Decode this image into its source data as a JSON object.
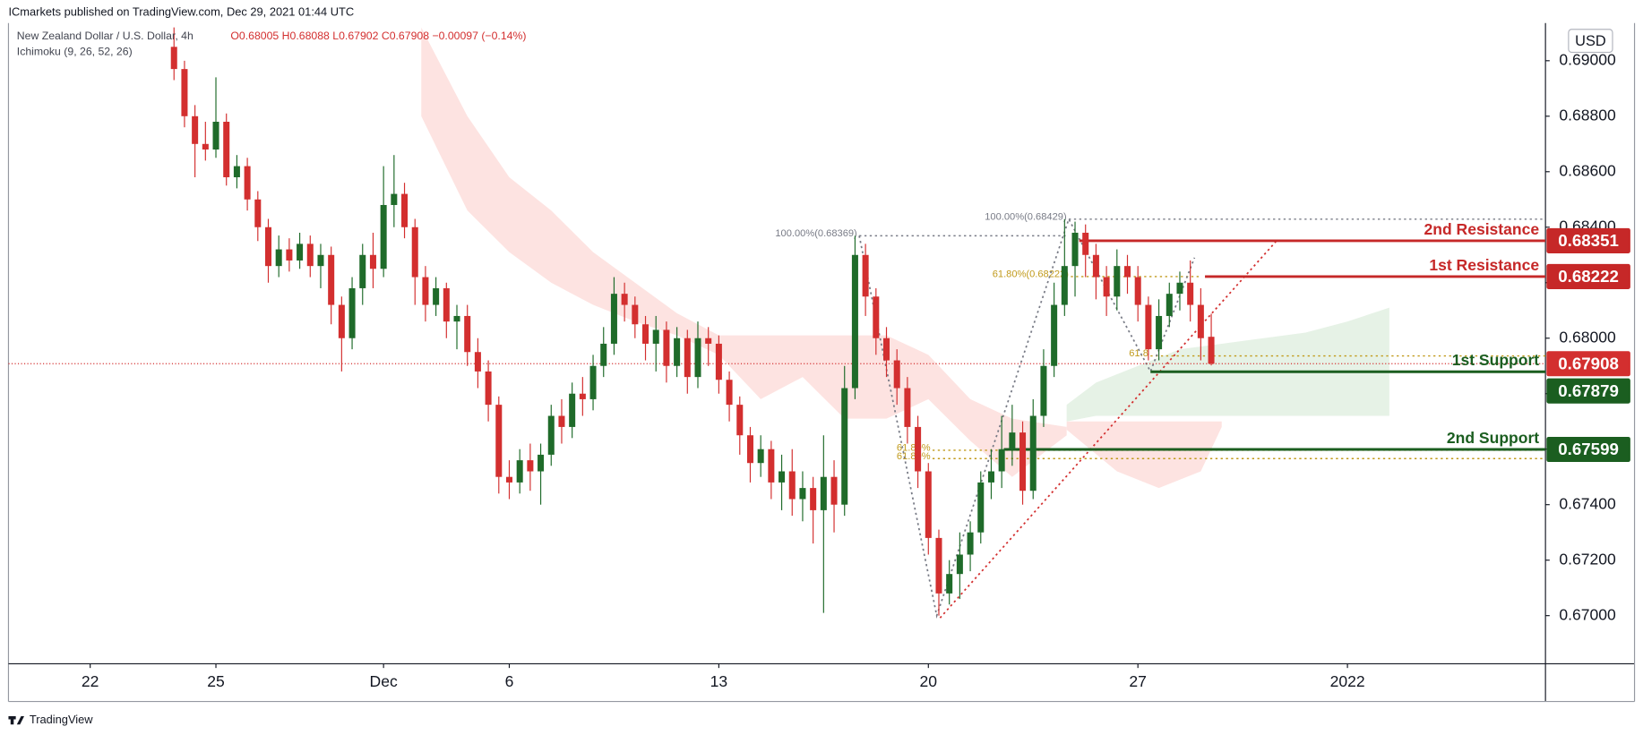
{
  "chart_data": {
    "type": "candlestick",
    "publisher": "ICmarkets published on TradingView.com, Dec 29, 2021 01:44 UTC",
    "title": "New Zealand Dollar / U.S. Dollar, 4h",
    "ohlc_text": "O0.68005 H0.68088 L0.67902 C0.67908 −0.00097 (−0.14%)",
    "indicator": "Ichimoku (9, 26, 52, 26)",
    "currency": "USD",
    "footer": "TradingView",
    "up_color": "#1f6b2a",
    "down_color": "#d32f2f",
    "xlim": [
      -1.95,
      34.725
    ],
    "xticks": [
      {
        "value": 0,
        "label": "22"
      },
      {
        "value": 3,
        "label": "25"
      },
      {
        "value": 7,
        "label": "Dec"
      },
      {
        "value": 10,
        "label": "6"
      },
      {
        "value": 15,
        "label": "13"
      },
      {
        "value": 20,
        "label": "20"
      },
      {
        "value": 25,
        "label": "27"
      },
      {
        "value": 30,
        "label": "2022"
      }
    ],
    "ylim": [
      0.668264,
      0.691358
    ],
    "yticks": [
      {
        "value": 0.67,
        "label": "0.67000"
      },
      {
        "value": 0.672,
        "label": "0.67200"
      },
      {
        "value": 0.674,
        "label": "0.67400"
      },
      {
        "value": 0.676,
        "label": "0.67600"
      },
      {
        "value": 0.678,
        "label": "0.67800"
      },
      {
        "value": 0.68,
        "label": "0.68000"
      },
      {
        "value": 0.682,
        "label": "0.68200"
      },
      {
        "value": 0.684,
        "label": "0.68400"
      },
      {
        "value": 0.686,
        "label": "0.68600"
      },
      {
        "value": 0.688,
        "label": "0.68800"
      },
      {
        "value": 0.69,
        "label": "0.69000"
      }
    ],
    "x": [
      2,
      2.25,
      2.5,
      2.75,
      3,
      3.25,
      3.5,
      3.75,
      4,
      4.25,
      4.5,
      4.75,
      5,
      5.25,
      5.5,
      5.75,
      6,
      6.25,
      6.5,
      6.75,
      7,
      7.25,
      7.5,
      7.75,
      8,
      8.25,
      8.5,
      8.75,
      9,
      9.25,
      9.5,
      9.75,
      10,
      10.25,
      10.5,
      10.75,
      11,
      11.25,
      11.5,
      11.75,
      12,
      12.25,
      12.5,
      12.75,
      13,
      13.25,
      13.5,
      13.75,
      14,
      14.25,
      14.5,
      14.75,
      15,
      15.25,
      15.5,
      15.75,
      16,
      16.25,
      16.5,
      16.75,
      17,
      17.25,
      17.5,
      17.75,
      18,
      18.25,
      18.5,
      18.75,
      19,
      19.25,
      19.5,
      19.75,
      20,
      20.25,
      20.5,
      20.75,
      21,
      21.25,
      21.5,
      21.75,
      22,
      22.25,
      22.5,
      22.75,
      23,
      23.25,
      23.5,
      23.75,
      24,
      24.25,
      24.5,
      24.75,
      25,
      25.25,
      25.5,
      25.75,
      26,
      26.25,
      26.5,
      26.75
    ],
    "open": [
      0.6905,
      0.6897,
      0.688,
      0.687,
      0.6868,
      0.6878,
      0.6858,
      0.6862,
      0.685,
      0.684,
      0.6826,
      0.6832,
      0.6828,
      0.6834,
      0.6826,
      0.683,
      0.6812,
      0.68,
      0.6818,
      0.683,
      0.6825,
      0.6848,
      0.6852,
      0.684,
      0.6822,
      0.6812,
      0.6818,
      0.6806,
      0.6808,
      0.6795,
      0.6788,
      0.6776,
      0.675,
      0.6748,
      0.6756,
      0.6752,
      0.6758,
      0.6772,
      0.6768,
      0.678,
      0.6778,
      0.679,
      0.6798,
      0.6816,
      0.6812,
      0.6805,
      0.6798,
      0.6803,
      0.679,
      0.68,
      0.6786,
      0.68,
      0.6798,
      0.6785,
      0.6776,
      0.6765,
      0.6755,
      0.676,
      0.6748,
      0.6752,
      0.6742,
      0.6746,
      0.6738,
      0.675,
      0.674,
      0.6782,
      0.683,
      0.6815,
      0.68,
      0.6792,
      0.6782,
      0.6768,
      0.6752,
      0.6728,
      0.6708,
      0.6715,
      0.6722,
      0.673,
      0.6748,
      0.6752,
      0.676,
      0.6766,
      0.6745,
      0.6772,
      0.679,
      0.6812,
      0.6826,
      0.6838,
      0.683,
      0.6822,
      0.6815,
      0.6826,
      0.6822,
      0.6812,
      0.6796,
      0.6808,
      0.6816,
      0.682,
      0.6812,
      0.68005
    ],
    "high": [
      0.6912,
      0.69,
      0.6884,
      0.6878,
      0.6894,
      0.6881,
      0.6866,
      0.6865,
      0.6853,
      0.6843,
      0.6837,
      0.6836,
      0.6838,
      0.6837,
      0.6834,
      0.6833,
      0.6815,
      0.6822,
      0.6834,
      0.6838,
      0.6862,
      0.6866,
      0.6856,
      0.6843,
      0.6826,
      0.6822,
      0.682,
      0.6812,
      0.6812,
      0.68,
      0.6792,
      0.6779,
      0.6756,
      0.676,
      0.6762,
      0.6762,
      0.6776,
      0.6778,
      0.6784,
      0.6786,
      0.6794,
      0.6804,
      0.6822,
      0.682,
      0.6815,
      0.6808,
      0.6808,
      0.6806,
      0.6804,
      0.6803,
      0.6806,
      0.6804,
      0.6801,
      0.6788,
      0.6779,
      0.6768,
      0.6765,
      0.6763,
      0.6758,
      0.676,
      0.6752,
      0.675,
      0.6765,
      0.6756,
      0.679,
      0.68369,
      0.6834,
      0.6818,
      0.6804,
      0.6796,
      0.6786,
      0.6772,
      0.6755,
      0.6731,
      0.672,
      0.673,
      0.6734,
      0.6752,
      0.676,
      0.6772,
      0.6776,
      0.677,
      0.6778,
      0.6796,
      0.682,
      0.68429,
      0.6842,
      0.6841,
      0.6834,
      0.6826,
      0.6832,
      0.683,
      0.6826,
      0.6815,
      0.6814,
      0.682,
      0.6824,
      0.6828,
      0.6818,
      0.68088
    ],
    "low": [
      0.6893,
      0.6876,
      0.6858,
      0.6864,
      0.6865,
      0.6855,
      0.6854,
      0.6846,
      0.6835,
      0.682,
      0.6822,
      0.6824,
      0.6825,
      0.6822,
      0.6818,
      0.6805,
      0.6788,
      0.6796,
      0.6812,
      0.6818,
      0.6822,
      0.684,
      0.6836,
      0.6812,
      0.6806,
      0.6808,
      0.68,
      0.6796,
      0.679,
      0.6782,
      0.677,
      0.6744,
      0.6742,
      0.6744,
      0.6745,
      0.674,
      0.6754,
      0.6762,
      0.6764,
      0.6772,
      0.6774,
      0.6786,
      0.6794,
      0.6806,
      0.68,
      0.6792,
      0.6788,
      0.6784,
      0.6786,
      0.678,
      0.6782,
      0.679,
      0.678,
      0.677,
      0.6758,
      0.6748,
      0.675,
      0.6742,
      0.6738,
      0.6736,
      0.6734,
      0.6726,
      0.6701,
      0.673,
      0.6736,
      0.6778,
      0.6808,
      0.6794,
      0.6786,
      0.6776,
      0.6762,
      0.6746,
      0.6722,
      0.67,
      0.6704,
      0.6706,
      0.6716,
      0.6726,
      0.6742,
      0.6746,
      0.6754,
      0.674,
      0.6742,
      0.6768,
      0.6786,
      0.6808,
      0.6815,
      0.6822,
      0.6814,
      0.6808,
      0.681,
      0.6816,
      0.6806,
      0.6792,
      0.6792,
      0.6804,
      0.681,
      0.6806,
      0.6792,
      0.67902
    ],
    "close": [
      0.6897,
      0.688,
      0.687,
      0.6868,
      0.6878,
      0.6858,
      0.6862,
      0.685,
      0.684,
      0.6826,
      0.6832,
      0.6828,
      0.6834,
      0.6826,
      0.683,
      0.6812,
      0.68,
      0.6818,
      0.683,
      0.6825,
      0.6848,
      0.6852,
      0.684,
      0.6822,
      0.6812,
      0.6818,
      0.6806,
      0.6808,
      0.6795,
      0.6788,
      0.6776,
      0.675,
      0.6748,
      0.6756,
      0.6752,
      0.6758,
      0.6772,
      0.6768,
      0.678,
      0.6778,
      0.679,
      0.6798,
      0.6816,
      0.6812,
      0.6805,
      0.6798,
      0.6803,
      0.679,
      0.68,
      0.6786,
      0.68,
      0.6798,
      0.6785,
      0.6776,
      0.6765,
      0.6755,
      0.676,
      0.6748,
      0.6752,
      0.6742,
      0.6746,
      0.6738,
      0.675,
      0.674,
      0.6782,
      0.683,
      0.6815,
      0.68,
      0.6792,
      0.6782,
      0.6768,
      0.6752,
      0.6728,
      0.6708,
      0.6715,
      0.6722,
      0.673,
      0.6748,
      0.6752,
      0.676,
      0.6766,
      0.6745,
      0.6772,
      0.679,
      0.6812,
      0.6826,
      0.6838,
      0.683,
      0.6822,
      0.6815,
      0.6826,
      0.6822,
      0.6812,
      0.6796,
      0.6808,
      0.6816,
      0.682,
      0.6812,
      0.68,
      0.67908
    ],
    "clouds": [
      {
        "color": "#fde3e1",
        "x": [
          7.9,
          9,
          10,
          11,
          12,
          13,
          14,
          15,
          16,
          17,
          18,
          19,
          20,
          21,
          22,
          23.3
        ],
        "upper": [
          0.6912,
          0.688,
          0.6858,
          0.6846,
          0.6831,
          0.682,
          0.6809,
          0.6801,
          0.6801,
          0.6801,
          0.6801,
          0.6801,
          0.6794,
          0.6778,
          0.6771,
          0.6768
        ],
        "lower": [
          0.688,
          0.6846,
          0.6831,
          0.682,
          0.6812,
          0.6806,
          0.6801,
          0.6794,
          0.6778,
          0.6786,
          0.6771,
          0.6771,
          0.6778,
          0.6763,
          0.675,
          0.6765
        ]
      },
      {
        "color": "#fde3e1",
        "x": [
          23.3,
          24.5,
          25.5,
          26.5,
          27
        ],
        "upper": [
          0.677,
          0.677,
          0.677,
          0.677,
          0.677
        ],
        "lower": [
          0.6767,
          0.6752,
          0.6746,
          0.6752,
          0.6768
        ]
      },
      {
        "color": "#e6f2e6",
        "x": [
          23.3,
          24,
          25,
          26,
          27,
          28,
          29,
          30,
          31
        ],
        "upper": [
          0.6776,
          0.6784,
          0.679,
          0.6796,
          0.6798,
          0.68,
          0.6802,
          0.6806,
          0.6811
        ],
        "lower": [
          0.677,
          0.6772,
          0.6772,
          0.6772,
          0.6772,
          0.6772,
          0.6772,
          0.6772,
          0.6772
        ]
      }
    ],
    "fibs": [
      {
        "label": "100.00%(0.68369)",
        "value": 0.68369,
        "x": [
          18.35,
          23.35
        ],
        "color": "#787b86"
      },
      {
        "label": "100.00%(0.68429)",
        "value": 0.68429,
        "x": [
          23.35,
          34.725
        ],
        "color": "#787b86"
      },
      {
        "label": "61.80%(0.68222)",
        "value": 0.68222,
        "x": [
          23.4,
          26.5
        ],
        "color": "#c19a1b"
      },
      {
        "label": "61.8",
        "value": 0.67936,
        "x": [
          25.3,
          34.725
        ],
        "color": "#c19a1b"
      },
      {
        "label": "61.80%",
        "value": 0.67596,
        "x": [
          20.1,
          34.725
        ],
        "color": "#c19a1b"
      },
      {
        "label": "61.80%",
        "value": 0.67566,
        "x": [
          20.1,
          34.725
        ],
        "color": "#c19a1b"
      }
    ],
    "trendlines": [
      {
        "color": "#d32f2f",
        "x": [
          20.28,
          28.35
        ],
        "y": [
          0.66992,
          0.68358
        ]
      },
      {
        "color": "#787b86",
        "x": [
          18.35,
          20.2,
          23.35,
          25.3,
          26.35
        ],
        "y": [
          0.68369,
          0.67,
          0.68429,
          0.6788,
          0.6829
        ]
      }
    ],
    "levels": [
      {
        "name": "2nd Resistance",
        "value": 0.68351,
        "label": "0.68351",
        "color": "#c62828",
        "start": 23.6
      },
      {
        "name": "1st Resistance",
        "value": 0.68222,
        "label": "0.68222",
        "color": "#c62828",
        "start": 26.6
      },
      {
        "name": "1st Support",
        "value": 0.67879,
        "label": "0.67879",
        "color": "#1b5e20",
        "start": 25.3
      },
      {
        "name": "2nd Support",
        "value": 0.67599,
        "label": "0.67599",
        "color": "#1b5e20",
        "start": 21.8
      }
    ],
    "last_price": {
      "value": 0.67908,
      "label": "0.67908",
      "color": "#d32f2f"
    }
  }
}
